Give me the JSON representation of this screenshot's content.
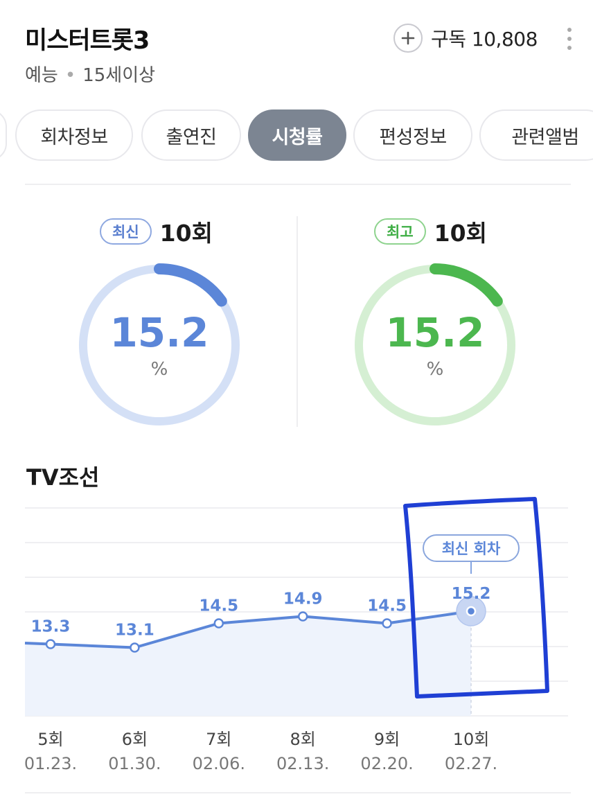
{
  "header": {
    "title": "미스터트롯3",
    "genre": "예능",
    "rating": "15세이상",
    "subscribe_label": "구독 10,808"
  },
  "tabs": [
    {
      "label": "회차정보",
      "active": false
    },
    {
      "label": "출연진",
      "active": false
    },
    {
      "label": "시청률",
      "active": true
    },
    {
      "label": "편성정보",
      "active": false
    },
    {
      "label": "관련앨범",
      "active": false
    }
  ],
  "latest": {
    "badge": "최신",
    "episode": "10회",
    "value": "15.2",
    "unit": "%",
    "fraction": 0.152,
    "color": "#5b86d8",
    "track": "#d4e0f6"
  },
  "highest": {
    "badge": "최고",
    "episode": "10회",
    "value": "15.2",
    "unit": "%",
    "fraction": 0.152,
    "color": "#4cb74f",
    "track": "#d5efd3"
  },
  "chart_data": {
    "type": "line",
    "title": "TV조선",
    "categories": [
      "5회",
      "6회",
      "7회",
      "8회",
      "9회",
      "10회"
    ],
    "dates": [
      "01.23.",
      "01.30.",
      "02.06.",
      "02.13.",
      "02.20.",
      "02.27."
    ],
    "values": [
      13.3,
      13.1,
      14.5,
      14.9,
      14.5,
      15.2
    ],
    "value_labels": [
      "13.3",
      "13.1",
      "14.5",
      "14.9",
      "14.5",
      "15.2"
    ],
    "highlight_label": "최신 회차",
    "highlight_index": 5,
    "line_color": "#5b86d8",
    "fill_color": "#eef3fc",
    "grid": true
  }
}
